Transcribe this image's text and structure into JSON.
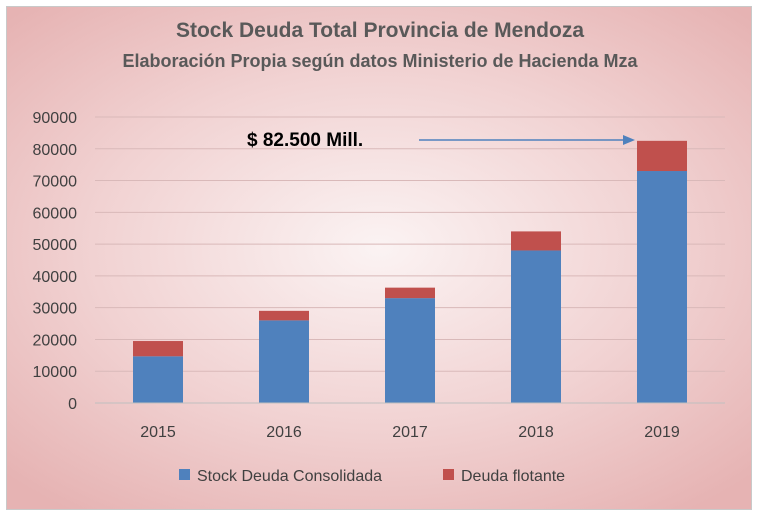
{
  "chart_data": {
    "type": "bar",
    "stacked": true,
    "title": "Stock Deuda Total Provincia de Mendoza",
    "subtitle": "Elaboración Propia según datos Ministerio de Hacienda Mza",
    "categories": [
      "2015",
      "2016",
      "2017",
      "2018",
      "2019"
    ],
    "series": [
      {
        "name": "Stock Deuda Consolidada",
        "values": [
          14700,
          26000,
          33000,
          48000,
          73000
        ],
        "color": "#4f81bd"
      },
      {
        "name": "Deuda flotante",
        "values": [
          4800,
          3000,
          3300,
          6000,
          9500
        ],
        "color": "#c0504d"
      }
    ],
    "ylim": [
      0,
      90000
    ],
    "yticks": [
      "0",
      "10000",
      "20000",
      "30000",
      "40000",
      "50000",
      "60000",
      "70000",
      "80000",
      "90000"
    ],
    "grid": true,
    "legend_position": "bottom",
    "annotation": {
      "text": "$ 82.500 Mill.",
      "target_category": "2019",
      "target_value": 82500,
      "arrow_color": "#4f81bd"
    }
  }
}
